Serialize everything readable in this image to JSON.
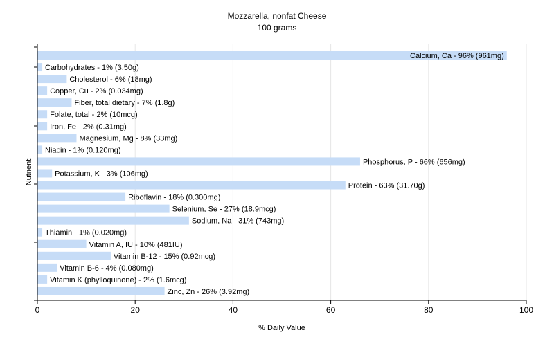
{
  "chart_data": {
    "type": "bar",
    "orientation": "horizontal",
    "title": "Mozzarella, nonfat Cheese",
    "subtitle": "100 grams",
    "xlabel": "% Daily Value",
    "ylabel": "Nutrient",
    "xlim": [
      0,
      100
    ],
    "xticks": [
      "0",
      "20",
      "40",
      "60",
      "80",
      "100"
    ],
    "grid": true,
    "bar_color": "#c6dcf7",
    "categories": [
      "Calcium, Ca",
      "Carbohydrates",
      "Cholesterol",
      "Copper, Cu",
      "Fiber, total dietary",
      "Folate, total",
      "Iron, Fe",
      "Magnesium, Mg",
      "Niacin",
      "Phosphorus, P",
      "Potassium, K",
      "Protein",
      "Riboflavin",
      "Selenium, Se",
      "Sodium, Na",
      "Thiamin",
      "Vitamin A, IU",
      "Vitamin B-12",
      "Vitamin B-6",
      "Vitamin K (phylloquinone)",
      "Zinc, Zn"
    ],
    "values": [
      96,
      1,
      6,
      2,
      7,
      2,
      2,
      8,
      1,
      66,
      3,
      63,
      18,
      27,
      31,
      1,
      10,
      15,
      4,
      2,
      26
    ],
    "labels": [
      "Calcium, Ca - 96% (961mg)",
      "Carbohydrates - 1% (3.50g)",
      "Cholesterol - 6% (18mg)",
      "Copper, Cu - 2% (0.034mg)",
      "Fiber, total dietary - 7% (1.8g)",
      "Folate, total - 2% (10mcg)",
      "Iron, Fe - 2% (0.31mg)",
      "Magnesium, Mg - 8% (33mg)",
      "Niacin - 1% (0.120mg)",
      "Phosphorus, P - 66% (656mg)",
      "Potassium, K - 3% (106mg)",
      "Protein - 63% (31.70g)",
      "Riboflavin - 18% (0.300mg)",
      "Selenium, Se - 27% (18.9mcg)",
      "Sodium, Na - 31% (743mg)",
      "Thiamin - 1% (0.020mg)",
      "Vitamin A, IU - 10% (481IU)",
      "Vitamin B-12 - 15% (0.92mcg)",
      "Vitamin B-6 - 4% (0.080mg)",
      "Vitamin K (phylloquinone) - 2% (1.6mcg)",
      "Zinc, Zn - 26% (3.92mg)"
    ]
  }
}
